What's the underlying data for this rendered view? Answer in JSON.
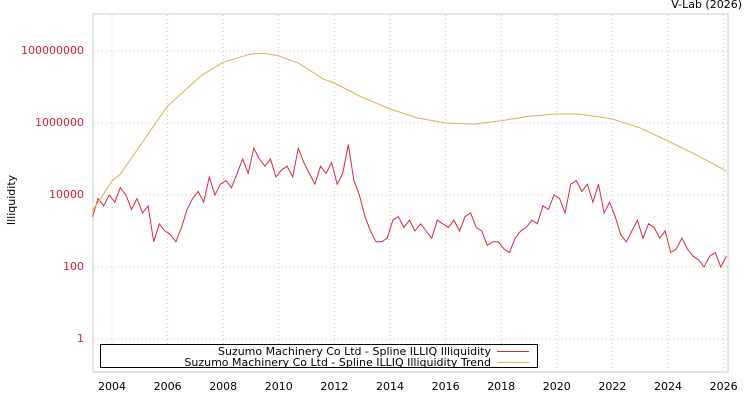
{
  "header": {
    "credit": "V-Lab (2026)"
  },
  "axes": {
    "ylabel": "Illiquidity",
    "yticks": [
      {
        "label": "100000000",
        "log": 8
      },
      {
        "label": "1000000",
        "log": 6
      },
      {
        "label": "10000",
        "log": 4
      },
      {
        "label": "100",
        "log": 2
      },
      {
        "label": "1",
        "log": 0
      }
    ],
    "xticks": [
      "2004",
      "2006",
      "2008",
      "2010",
      "2012",
      "2014",
      "2016",
      "2018",
      "2020",
      "2022",
      "2024",
      "2026"
    ]
  },
  "legend": {
    "items": [
      {
        "label": "Suzumo Machinery Co Ltd - Spline ILLIQ Illiquidity",
        "color": "#d62b3a"
      },
      {
        "label": "Suzumo Machinery Co Ltd - Spline ILLIQ Illiquidity Trend",
        "color": "#d9b25a"
      }
    ]
  },
  "colors": {
    "series": "#d62b3a",
    "trend": "#d9b25a",
    "tick_label": "#cc2233",
    "grid": "#c8c8c8",
    "frame": "#cccccc"
  },
  "chart_data": {
    "type": "line",
    "title": "",
    "xlabel": "",
    "ylabel": "Illiquidity",
    "yscale": "log",
    "ylim": [
      0.1,
      1000000000
    ],
    "xlim": [
      2003.3,
      2026.1
    ],
    "grid": true,
    "legend_position": "bottom-left",
    "series": [
      {
        "name": "Suzumo Machinery Co Ltd - Spline ILLIQ Illiquidity",
        "x": [
          2003.3,
          2003.5,
          2003.7,
          2003.9,
          2004.1,
          2004.3,
          2004.5,
          2004.7,
          2004.9,
          2005.1,
          2005.3,
          2005.5,
          2005.7,
          2005.9,
          2006.1,
          2006.3,
          2006.5,
          2006.7,
          2006.9,
          2007.1,
          2007.3,
          2007.5,
          2007.7,
          2007.9,
          2008.1,
          2008.3,
          2008.5,
          2008.7,
          2008.9,
          2009.1,
          2009.3,
          2009.5,
          2009.7,
          2009.9,
          2010.1,
          2010.3,
          2010.5,
          2010.7,
          2010.9,
          2011.1,
          2011.3,
          2011.5,
          2011.7,
          2011.9,
          2012.1,
          2012.3,
          2012.5,
          2012.7,
          2012.9,
          2013.1,
          2013.3,
          2013.5,
          2013.7,
          2013.9,
          2014.1,
          2014.3,
          2014.5,
          2014.7,
          2014.9,
          2015.1,
          2015.3,
          2015.5,
          2015.7,
          2015.9,
          2016.1,
          2016.3,
          2016.5,
          2016.7,
          2016.9,
          2017.1,
          2017.3,
          2017.5,
          2017.7,
          2017.9,
          2018.1,
          2018.3,
          2018.5,
          2018.7,
          2018.9,
          2019.1,
          2019.3,
          2019.5,
          2019.7,
          2019.9,
          2020.1,
          2020.3,
          2020.5,
          2020.7,
          2020.9,
          2021.1,
          2021.3,
          2021.5,
          2021.7,
          2021.9,
          2022.1,
          2022.3,
          2022.5,
          2022.7,
          2022.9,
          2023.1,
          2023.3,
          2023.5,
          2023.7,
          2023.9,
          2024.1,
          2024.3,
          2024.5,
          2024.7,
          2024.9,
          2025.1,
          2025.3,
          2025.5,
          2025.7,
          2025.9,
          2026.1
        ],
        "log10": [
          3.4,
          3.9,
          3.7,
          4.0,
          3.8,
          4.2,
          4.0,
          3.6,
          3.9,
          3.5,
          3.7,
          2.7,
          3.2,
          3.0,
          2.9,
          2.7,
          3.1,
          3.6,
          3.9,
          4.1,
          3.8,
          4.5,
          4.0,
          4.3,
          4.4,
          4.2,
          4.6,
          5.0,
          4.6,
          5.3,
          5.0,
          4.8,
          5.0,
          4.5,
          4.7,
          4.8,
          4.5,
          5.3,
          4.9,
          4.6,
          4.3,
          4.8,
          4.6,
          4.9,
          4.3,
          4.6,
          5.4,
          4.4,
          4.0,
          3.4,
          3.0,
          2.7,
          2.7,
          2.8,
          3.3,
          3.4,
          3.1,
          3.3,
          3.0,
          3.2,
          3.0,
          2.8,
          3.3,
          3.2,
          3.1,
          3.3,
          3.0,
          3.4,
          3.5,
          3.1,
          3.0,
          2.6,
          2.7,
          2.7,
          2.5,
          2.4,
          2.8,
          3.0,
          3.1,
          3.3,
          3.2,
          3.7,
          3.6,
          4.0,
          3.9,
          3.5,
          4.3,
          4.4,
          4.1,
          4.3,
          3.8,
          4.3,
          3.5,
          3.8,
          3.4,
          2.9,
          2.7,
          3.0,
          3.3,
          2.8,
          3.2,
          3.1,
          2.8,
          3.0,
          2.4,
          2.5,
          2.8,
          2.5,
          2.3,
          2.2,
          2.0,
          2.3,
          2.4,
          2.0,
          2.3
        ]
      },
      {
        "name": "Suzumo Machinery Co Ltd - Spline ILLIQ Illiquidity Trend",
        "x": [
          2003.3,
          2004.0,
          2004.3,
          2005.0,
          2006.0,
          2007.2,
          2008.0,
          2009.0,
          2009.5,
          2010.0,
          2010.7,
          2011.6,
          2012.0,
          2012.9,
          2014.0,
          2015.0,
          2016.0,
          2017.0,
          2018.0,
          2019.0,
          2020.0,
          2020.8,
          2022.0,
          2023.0,
          2024.0,
          2025.1,
          2026.1
        ],
        "log10": [
          3.56,
          4.39,
          4.58,
          5.36,
          6.47,
          7.31,
          7.69,
          7.92,
          7.94,
          7.86,
          7.67,
          7.22,
          7.11,
          6.75,
          6.39,
          6.14,
          6.0,
          5.97,
          6.06,
          6.19,
          6.25,
          6.25,
          6.11,
          5.86,
          5.5,
          5.08,
          4.67
        ]
      }
    ]
  }
}
